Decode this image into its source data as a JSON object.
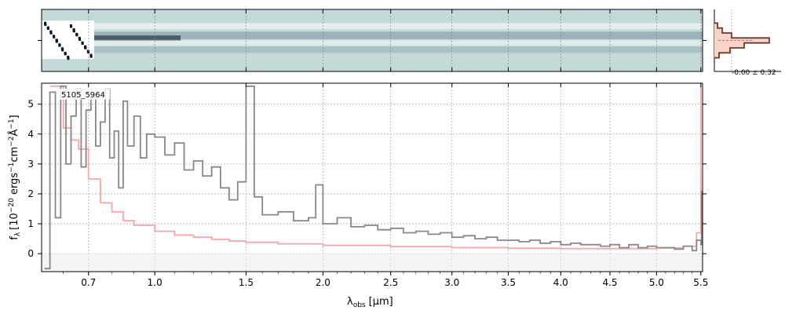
{
  "chart_data": [
    {
      "type": "heatmap",
      "description_role": "2D spectrum image",
      "x_ticks": [
        "0.7",
        "1.0",
        "1.5",
        "2.0",
        "2.5",
        "3.0",
        "3.5",
        "4.0",
        "4.5",
        "5.0",
        "5.5"
      ],
      "colors": {
        "background": "#c3dad8",
        "dark": "#0a1628",
        "mid": "#4a6478",
        "light": "#ffffff"
      },
      "grid": true
    },
    {
      "type": "line",
      "label": "5105_5964",
      "xlabel_main": "λ",
      "xlabel_sub": "obs",
      "xlabel_unit": "[μm]",
      "ylabel": "f_λ [10^−20 ergs^−1cm^−2Å^−1]",
      "ylabel_parts": {
        "f": "f",
        "lam": "λ",
        "open": "[10",
        "e1": "−20",
        "mid1": " ergs",
        "e2": "−1",
        "mid2": "cm",
        "e3": "−2",
        "mid3": "Å",
        "e4": "−1",
        "close": "]"
      },
      "x_ticks": [
        "0.7",
        "1.0",
        "1.5",
        "2.0",
        "2.5",
        "3.0",
        "3.5",
        "4.0",
        "4.5",
        "5.0",
        "5.5"
      ],
      "x_tick_values": [
        0.7,
        1.0,
        1.5,
        2.0,
        2.5,
        3.0,
        3.5,
        4.0,
        4.5,
        5.0,
        5.5
      ],
      "y_ticks": [
        "0",
        "1",
        "2",
        "3",
        "4",
        "5"
      ],
      "y_tick_values": [
        0,
        1,
        2,
        3,
        4,
        5
      ],
      "xlim": [
        0.52,
        5.52
      ],
      "ylim": [
        -0.6,
        5.7
      ],
      "x_scale": "sqrt",
      "grid": true,
      "series": [
        {
          "role": "flux",
          "color": "#888888",
          "x": [
            0.53,
            0.55,
            0.57,
            0.59,
            0.61,
            0.63,
            0.65,
            0.67,
            0.69,
            0.71,
            0.73,
            0.75,
            0.77,
            0.79,
            0.81,
            0.83,
            0.85,
            0.87,
            0.9,
            0.93,
            0.96,
            1.0,
            1.05,
            1.1,
            1.15,
            1.2,
            1.25,
            1.3,
            1.35,
            1.4,
            1.45,
            1.5,
            1.55,
            1.6,
            1.7,
            1.8,
            1.9,
            1.95,
            2.0,
            2.1,
            2.2,
            2.3,
            2.4,
            2.5,
            2.6,
            2.7,
            2.8,
            2.9,
            3.0,
            3.1,
            3.2,
            3.3,
            3.4,
            3.5,
            3.6,
            3.7,
            3.8,
            3.9,
            4.0,
            4.1,
            4.2,
            4.3,
            4.4,
            4.5,
            4.6,
            4.7,
            4.8,
            4.9,
            5.0,
            5.1,
            5.2,
            5.3,
            5.4,
            5.45,
            5.5,
            5.51
          ],
          "y": [
            -0.5,
            5.4,
            1.2,
            5.6,
            3.0,
            4.6,
            5.5,
            2.9,
            4.8,
            5.2,
            3.6,
            4.4,
            5.5,
            3.2,
            4.1,
            2.2,
            5.1,
            3.6,
            4.6,
            3.2,
            4.0,
            3.9,
            3.3,
            3.7,
            2.8,
            3.1,
            2.6,
            2.9,
            2.2,
            1.8,
            2.4,
            5.6,
            1.9,
            1.3,
            1.4,
            1.1,
            1.2,
            2.3,
            1.0,
            1.2,
            0.9,
            0.95,
            0.8,
            0.85,
            0.7,
            0.75,
            0.65,
            0.7,
            0.55,
            0.6,
            0.5,
            0.55,
            0.45,
            0.45,
            0.4,
            0.45,
            0.35,
            0.4,
            0.3,
            0.35,
            0.3,
            0.3,
            0.25,
            0.3,
            0.2,
            0.3,
            0.2,
            0.25,
            0.2,
            0.2,
            0.15,
            0.25,
            0.1,
            0.45,
            0.3,
            2.1
          ]
        },
        {
          "role": "error",
          "color": "#f5a7a7",
          "x": [
            0.55,
            0.6,
            0.63,
            0.66,
            0.7,
            0.75,
            0.8,
            0.85,
            0.9,
            1.0,
            1.1,
            1.2,
            1.3,
            1.4,
            1.5,
            1.7,
            2.0,
            2.5,
            3.0,
            3.5,
            4.0,
            4.5,
            5.0,
            5.3,
            5.45,
            5.5
          ],
          "y": [
            5.6,
            4.2,
            3.8,
            3.5,
            2.5,
            1.7,
            1.4,
            1.1,
            0.95,
            0.75,
            0.62,
            0.55,
            0.48,
            0.42,
            0.38,
            0.33,
            0.28,
            0.24,
            0.2,
            0.18,
            0.17,
            0.17,
            0.19,
            0.25,
            0.7,
            5.6
          ]
        }
      ]
    },
    {
      "type": "bar",
      "description_role": "residual histogram",
      "text": "-0.00 ± 0.32",
      "colors": {
        "fill": "#f9d3c8",
        "edge": "#6b3a2e"
      }
    }
  ]
}
